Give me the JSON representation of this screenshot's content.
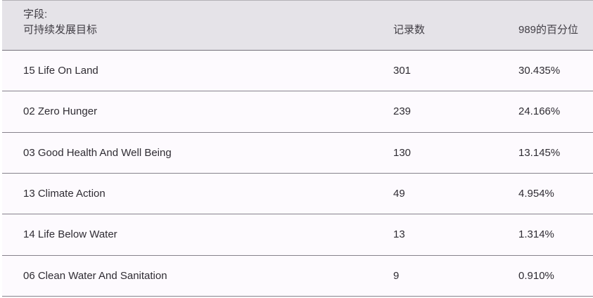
{
  "colors": {
    "header_bg": "#e5e3e8",
    "row_bg": "#fdfafe",
    "header_border": "#76727c",
    "row_border": "#86828c",
    "top_border": "#b2b0b6",
    "header_text": "#413e45",
    "text": "#2f2c33"
  },
  "table": {
    "header": {
      "field_prefix": "字段:",
      "field_name": "可持续发展目标",
      "records_label": "记录数",
      "percentile_label": "989的百分位"
    },
    "rows": [
      {
        "label": "15 Life On Land",
        "records": "301",
        "percentile": "30.435%"
      },
      {
        "label": "02 Zero Hunger",
        "records": "239",
        "percentile": "24.166%"
      },
      {
        "label": "03 Good Health And Well Being",
        "records": "130",
        "percentile": "13.145%"
      },
      {
        "label": "13 Climate Action",
        "records": "49",
        "percentile": "4.954%"
      },
      {
        "label": "14 Life Below Water",
        "records": "13",
        "percentile": "1.314%"
      },
      {
        "label": "06 Clean Water And Sanitation",
        "records": "9",
        "percentile": "0.910%"
      }
    ]
  }
}
